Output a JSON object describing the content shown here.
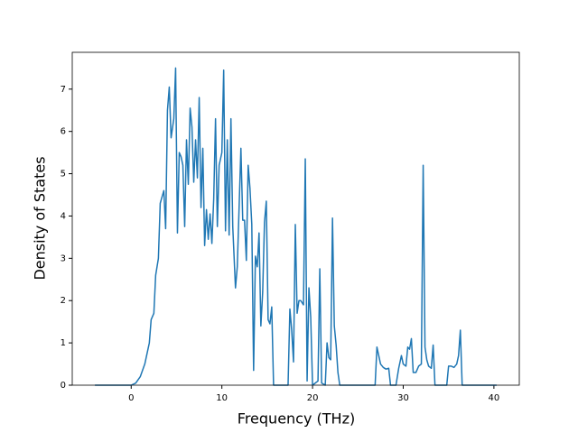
{
  "chart_data": {
    "type": "line",
    "x_label": "Frequency (THz)",
    "y_label": "Density of States",
    "xlim": [
      -6.5,
      42.8
    ],
    "ylim": [
      0,
      7.87
    ],
    "xticks": [
      0,
      10,
      20,
      30,
      40
    ],
    "yticks": [
      0,
      1,
      2,
      3,
      4,
      5,
      6,
      7
    ],
    "color": "#1f77b4",
    "x": [
      -4,
      0,
      0.5,
      1,
      1.5,
      2,
      2.2,
      2.5,
      2.7,
      3,
      3.2,
      3.6,
      3.8,
      4,
      4.2,
      4.4,
      4.7,
      4.9,
      5.1,
      5.3,
      5.5,
      5.7,
      5.9,
      6.1,
      6.3,
      6.5,
      6.7,
      6.9,
      7.1,
      7.3,
      7.5,
      7.7,
      7.9,
      8.1,
      8.3,
      8.5,
      8.7,
      8.9,
      9.1,
      9.3,
      9.5,
      9.7,
      10,
      10.2,
      10.4,
      10.6,
      10.8,
      11,
      11.2,
      11.5,
      11.7,
      11.9,
      12.1,
      12.3,
      12.5,
      12.7,
      12.9,
      13.1,
      13.3,
      13.5,
      13.7,
      13.9,
      14.1,
      14.3,
      14.5,
      14.7,
      14.9,
      15.1,
      15.3,
      15.5,
      15.7,
      17.3,
      17.5,
      17.7,
      17.9,
      18.1,
      18.3,
      18.5,
      18.7,
      19,
      19.2,
      19.4,
      19.6,
      19.8,
      20,
      20.6,
      20.8,
      21,
      21.4,
      21.6,
      21.8,
      22,
      22.2,
      22.4,
      22.6,
      22.8,
      23,
      26.9,
      27.1,
      27.3,
      27.5,
      27.8,
      28.1,
      28.4,
      28.6,
      29.2,
      29.5,
      29.8,
      30,
      30.3,
      30.5,
      30.7,
      30.9,
      31.1,
      31.4,
      31.7,
      32,
      32.2,
      32.4,
      32.6,
      32.8,
      33.1,
      33.3,
      33.5,
      34.8,
      35,
      35.3,
      35.6,
      35.9,
      36.1,
      36.3,
      36.5,
      40.3
    ],
    "values": [
      0,
      0,
      0.05,
      0.2,
      0.5,
      1.0,
      1.55,
      1.7,
      2.6,
      3.0,
      4.3,
      4.6,
      3.7,
      6.5,
      7.05,
      5.85,
      6.3,
      7.5,
      3.6,
      5.5,
      5.4,
      5.2,
      3.75,
      5.8,
      4.75,
      6.55,
      6.1,
      4.8,
      5.8,
      4.9,
      6.8,
      4.2,
      5.6,
      3.3,
      4.15,
      3.45,
      4.05,
      3.35,
      4.4,
      6.3,
      3.75,
      5.2,
      5.5,
      7.45,
      3.65,
      5.8,
      3.55,
      6.3,
      3.75,
      2.3,
      2.8,
      4.2,
      5.6,
      3.9,
      3.9,
      2.95,
      5.2,
      4.65,
      3.8,
      0.35,
      3.05,
      2.8,
      3.6,
      1.4,
      2.2,
      3.85,
      4.35,
      1.55,
      1.45,
      1.85,
      0,
      0,
      1.8,
      1.3,
      0.55,
      3.8,
      1.7,
      2.0,
      2.0,
      1.9,
      5.35,
      0.1,
      2.3,
      1.6,
      0,
      0.1,
      2.75,
      0.05,
      0,
      1.0,
      0.65,
      0.6,
      3.95,
      1.4,
      0.95,
      0.3,
      0,
      0,
      0.9,
      0.7,
      0.5,
      0.42,
      0.38,
      0.4,
      0,
      0,
      0.4,
      0.7,
      0.5,
      0.45,
      0.9,
      0.85,
      1.1,
      0.3,
      0.3,
      0.45,
      0.5,
      5.2,
      0.9,
      0.6,
      0.45,
      0.4,
      0.95,
      0,
      0,
      0.45,
      0.45,
      0.42,
      0.5,
      0.7,
      1.3,
      0,
      0
    ]
  }
}
